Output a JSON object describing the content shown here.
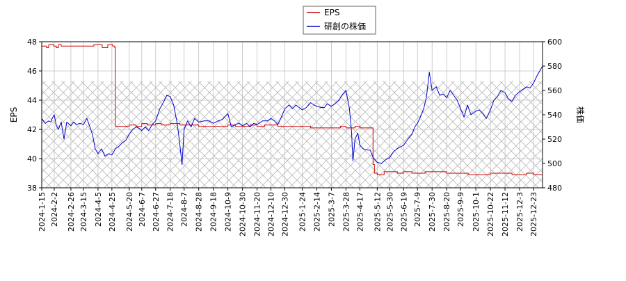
{
  "chart_data": {
    "type": "line",
    "legend": {
      "position": "top-center",
      "entries": [
        {
          "label": "EPS",
          "color": "#cc0000"
        },
        {
          "label": "研創の株価",
          "color": "#0000cc"
        }
      ]
    },
    "ylabel_left": "EPS",
    "ylabel_right": "株価",
    "ylim_left": [
      38,
      48
    ],
    "yticks_left": [
      38,
      40,
      42,
      44,
      46,
      48
    ],
    "ylim_right": [
      480,
      600
    ],
    "yticks_right": [
      480,
      500,
      520,
      540,
      560,
      580,
      600
    ],
    "x_range": [
      "2024-01-15",
      "2026-01-05"
    ],
    "x_ticks": [
      "2024-1-15",
      "2024-2-2",
      "2024-2-26",
      "2024-3-15",
      "2024-4-5",
      "2024-4-25",
      "2024-5-20",
      "2024-6-7",
      "2024-6-27",
      "2024-7-18",
      "2024-8-7",
      "2024-8-28",
      "2024-9-18",
      "2024-10-9",
      "2024-10-30",
      "2024-11-20",
      "2024-12-10",
      "2024-12-30",
      "2025-1-24",
      "2025-2-14",
      "2025-3-7",
      "2025-3-28",
      "2025-4-17",
      "2025-5-12",
      "2025-5-30",
      "2025-6-19",
      "2025-7-9",
      "2025-7-30",
      "2025-8-20",
      "2025-9-9",
      "2025-10-1",
      "2025-10-22",
      "2025-11-12",
      "2025-12-3",
      "2025-12-23"
    ],
    "grid": true,
    "hatch_band_left": [
      38,
      45.3
    ],
    "series": [
      {
        "name": "EPS",
        "axis": "left",
        "color": "#cc0000",
        "points": [
          [
            "2024-01-15",
            47.7
          ],
          [
            "2024-01-22",
            47.6
          ],
          [
            "2024-01-25",
            47.8
          ],
          [
            "2024-02-01",
            47.7
          ],
          [
            "2024-02-05",
            47.6
          ],
          [
            "2024-02-08",
            47.8
          ],
          [
            "2024-02-12",
            47.7
          ],
          [
            "2024-02-20",
            47.7
          ],
          [
            "2024-03-10",
            47.7
          ],
          [
            "2024-03-25",
            47.7
          ],
          [
            "2024-03-30",
            47.8
          ],
          [
            "2024-04-08",
            47.8
          ],
          [
            "2024-04-11",
            47.6
          ],
          [
            "2024-04-16",
            47.6
          ],
          [
            "2024-04-19",
            47.8
          ],
          [
            "2024-04-26",
            47.7
          ],
          [
            "2024-04-29",
            47.6
          ],
          [
            "2024-04-30",
            42.2
          ],
          [
            "2024-05-10",
            42.2
          ],
          [
            "2024-05-20",
            42.3
          ],
          [
            "2024-05-30",
            42.2
          ],
          [
            "2024-06-07",
            42.4
          ],
          [
            "2024-06-15",
            42.3
          ],
          [
            "2024-06-27",
            42.4
          ],
          [
            "2024-07-05",
            42.3
          ],
          [
            "2024-07-18",
            42.4
          ],
          [
            "2024-08-01",
            42.3
          ],
          [
            "2024-08-07",
            42.3
          ],
          [
            "2024-08-20",
            42.3
          ],
          [
            "2024-08-28",
            42.2
          ],
          [
            "2024-09-18",
            42.2
          ],
          [
            "2024-10-09",
            42.3
          ],
          [
            "2024-10-20",
            42.2
          ],
          [
            "2024-10-30",
            42.2
          ],
          [
            "2024-11-10",
            42.3
          ],
          [
            "2024-11-20",
            42.2
          ],
          [
            "2024-12-01",
            42.3
          ],
          [
            "2024-12-10",
            42.3
          ],
          [
            "2024-12-20",
            42.2
          ],
          [
            "2024-12-30",
            42.2
          ],
          [
            "2025-01-10",
            42.2
          ],
          [
            "2025-01-24",
            42.2
          ],
          [
            "2025-02-05",
            42.1
          ],
          [
            "2025-02-14",
            42.1
          ],
          [
            "2025-03-01",
            42.1
          ],
          [
            "2025-03-07",
            42.1
          ],
          [
            "2025-03-20",
            42.2
          ],
          [
            "2025-03-28",
            42.1
          ],
          [
            "2025-04-10",
            42.2
          ],
          [
            "2025-04-17",
            42.1
          ],
          [
            "2025-04-25",
            42.1
          ],
          [
            "2025-05-05",
            42.1
          ],
          [
            "2025-05-06",
            39.6
          ],
          [
            "2025-05-08",
            39.0
          ],
          [
            "2025-05-12",
            38.9
          ],
          [
            "2025-05-22",
            39.1
          ],
          [
            "2025-05-30",
            39.1
          ],
          [
            "2025-06-10",
            39.0
          ],
          [
            "2025-06-19",
            39.1
          ],
          [
            "2025-07-01",
            39.0
          ],
          [
            "2025-07-09",
            39.0
          ],
          [
            "2025-07-20",
            39.1
          ],
          [
            "2025-07-30",
            39.1
          ],
          [
            "2025-08-10",
            39.1
          ],
          [
            "2025-08-20",
            39.0
          ],
          [
            "2025-09-01",
            39.0
          ],
          [
            "2025-09-09",
            39.0
          ],
          [
            "2025-09-20",
            38.9
          ],
          [
            "2025-10-01",
            38.9
          ],
          [
            "2025-10-10",
            38.9
          ],
          [
            "2025-10-22",
            39.0
          ],
          [
            "2025-11-01",
            39.0
          ],
          [
            "2025-11-12",
            39.0
          ],
          [
            "2025-11-22",
            38.9
          ],
          [
            "2025-12-03",
            38.9
          ],
          [
            "2025-12-13",
            39.0
          ],
          [
            "2025-12-23",
            38.9
          ],
          [
            "2026-01-05",
            38.8
          ]
        ]
      },
      {
        "name": "研創の株価",
        "axis": "right",
        "color": "#0000cc",
        "points": [
          [
            "2024-01-15",
            537
          ],
          [
            "2024-01-20",
            533
          ],
          [
            "2024-01-25",
            535
          ],
          [
            "2024-01-28",
            534
          ],
          [
            "2024-01-30",
            537
          ],
          [
            "2024-02-02",
            540
          ],
          [
            "2024-02-05",
            531
          ],
          [
            "2024-02-08",
            528
          ],
          [
            "2024-02-12",
            534
          ],
          [
            "2024-02-16",
            520
          ],
          [
            "2024-02-20",
            534
          ],
          [
            "2024-02-26",
            531
          ],
          [
            "2024-03-01",
            534
          ],
          [
            "2024-03-05",
            532
          ],
          [
            "2024-03-10",
            533
          ],
          [
            "2024-03-15",
            532
          ],
          [
            "2024-03-20",
            537
          ],
          [
            "2024-03-28",
            524
          ],
          [
            "2024-04-01",
            512
          ],
          [
            "2024-04-05",
            508
          ],
          [
            "2024-04-10",
            512
          ],
          [
            "2024-04-15",
            506
          ],
          [
            "2024-04-20",
            508
          ],
          [
            "2024-04-25",
            507
          ],
          [
            "2024-04-30",
            512
          ],
          [
            "2024-05-05",
            514
          ],
          [
            "2024-05-10",
            517
          ],
          [
            "2024-05-15",
            519
          ],
          [
            "2024-05-20",
            524
          ],
          [
            "2024-05-25",
            528
          ],
          [
            "2024-05-30",
            530
          ],
          [
            "2024-06-03",
            529
          ],
          [
            "2024-06-07",
            527
          ],
          [
            "2024-06-12",
            530
          ],
          [
            "2024-06-17",
            527
          ],
          [
            "2024-06-22",
            532
          ],
          [
            "2024-06-27",
            535
          ],
          [
            "2024-07-03",
            545
          ],
          [
            "2024-07-08",
            550
          ],
          [
            "2024-07-13",
            556
          ],
          [
            "2024-07-18",
            555
          ],
          [
            "2024-07-23",
            548
          ],
          [
            "2024-07-28",
            533
          ],
          [
            "2024-07-31",
            520
          ],
          [
            "2024-08-04",
            499
          ],
          [
            "2024-08-07",
            528
          ],
          [
            "2024-08-12",
            535
          ],
          [
            "2024-08-17",
            530
          ],
          [
            "2024-08-22",
            537
          ],
          [
            "2024-08-28",
            534
          ],
          [
            "2024-09-05",
            535
          ],
          [
            "2024-09-12",
            535
          ],
          [
            "2024-09-18",
            533
          ],
          [
            "2024-09-25",
            535
          ],
          [
            "2024-10-01",
            536
          ],
          [
            "2024-10-09",
            541
          ],
          [
            "2024-10-14",
            530
          ],
          [
            "2024-10-20",
            532
          ],
          [
            "2024-10-25",
            533
          ],
          [
            "2024-10-30",
            531
          ],
          [
            "2024-11-05",
            533
          ],
          [
            "2024-11-10",
            530
          ],
          [
            "2024-11-15",
            533
          ],
          [
            "2024-11-20",
            532
          ],
          [
            "2024-11-28",
            535
          ],
          [
            "2024-12-05",
            535
          ],
          [
            "2024-12-10",
            537
          ],
          [
            "2024-12-15",
            535
          ],
          [
            "2024-12-20",
            532
          ],
          [
            "2024-12-25",
            538
          ],
          [
            "2024-12-30",
            545
          ],
          [
            "2025-01-05",
            548
          ],
          [
            "2025-01-10",
            545
          ],
          [
            "2025-01-15",
            548
          ],
          [
            "2025-01-24",
            544
          ],
          [
            "2025-01-30",
            546
          ],
          [
            "2025-02-05",
            550
          ],
          [
            "2025-02-10",
            548
          ],
          [
            "2025-02-14",
            547
          ],
          [
            "2025-02-20",
            546
          ],
          [
            "2025-02-25",
            546
          ],
          [
            "2025-03-01",
            549
          ],
          [
            "2025-03-07",
            547
          ],
          [
            "2025-03-12",
            549
          ],
          [
            "2025-03-18",
            552
          ],
          [
            "2025-03-22",
            556
          ],
          [
            "2025-03-28",
            560
          ],
          [
            "2025-04-02",
            545
          ],
          [
            "2025-04-05",
            526
          ],
          [
            "2025-04-07",
            502
          ],
          [
            "2025-04-10",
            520
          ],
          [
            "2025-04-14",
            525
          ],
          [
            "2025-04-17",
            515
          ],
          [
            "2025-04-22",
            512
          ],
          [
            "2025-04-28",
            511
          ],
          [
            "2025-05-02",
            511
          ],
          [
            "2025-05-06",
            505
          ],
          [
            "2025-05-12",
            501
          ],
          [
            "2025-05-18",
            500
          ],
          [
            "2025-05-24",
            503
          ],
          [
            "2025-05-30",
            505
          ],
          [
            "2025-06-05",
            510
          ],
          [
            "2025-06-12",
            513
          ],
          [
            "2025-06-19",
            515
          ],
          [
            "2025-06-25",
            520
          ],
          [
            "2025-07-01",
            524
          ],
          [
            "2025-07-05",
            530
          ],
          [
            "2025-07-09",
            533
          ],
          [
            "2025-07-13",
            538
          ],
          [
            "2025-07-18",
            545
          ],
          [
            "2025-07-22",
            555
          ],
          [
            "2025-07-26",
            575
          ],
          [
            "2025-07-30",
            560
          ],
          [
            "2025-08-05",
            563
          ],
          [
            "2025-08-10",
            556
          ],
          [
            "2025-08-15",
            557
          ],
          [
            "2025-08-20",
            554
          ],
          [
            "2025-08-25",
            560
          ],
          [
            "2025-08-30",
            556
          ],
          [
            "2025-09-04",
            552
          ],
          [
            "2025-09-09",
            545
          ],
          [
            "2025-09-14",
            538
          ],
          [
            "2025-09-19",
            548
          ],
          [
            "2025-09-24",
            540
          ],
          [
            "2025-10-01",
            543
          ],
          [
            "2025-10-06",
            544
          ],
          [
            "2025-10-11",
            541
          ],
          [
            "2025-10-16",
            537
          ],
          [
            "2025-10-22",
            544
          ],
          [
            "2025-10-27",
            552
          ],
          [
            "2025-11-01",
            555
          ],
          [
            "2025-11-06",
            560
          ],
          [
            "2025-11-12",
            558
          ],
          [
            "2025-11-17",
            553
          ],
          [
            "2025-11-22",
            551
          ],
          [
            "2025-11-27",
            556
          ],
          [
            "2025-12-03",
            559
          ],
          [
            "2025-12-08",
            561
          ],
          [
            "2025-12-13",
            563
          ],
          [
            "2025-12-18",
            562
          ],
          [
            "2025-12-23",
            566
          ],
          [
            "2025-12-28",
            572
          ],
          [
            "2026-01-01",
            576
          ],
          [
            "2026-01-05",
            580
          ]
        ]
      }
    ]
  }
}
